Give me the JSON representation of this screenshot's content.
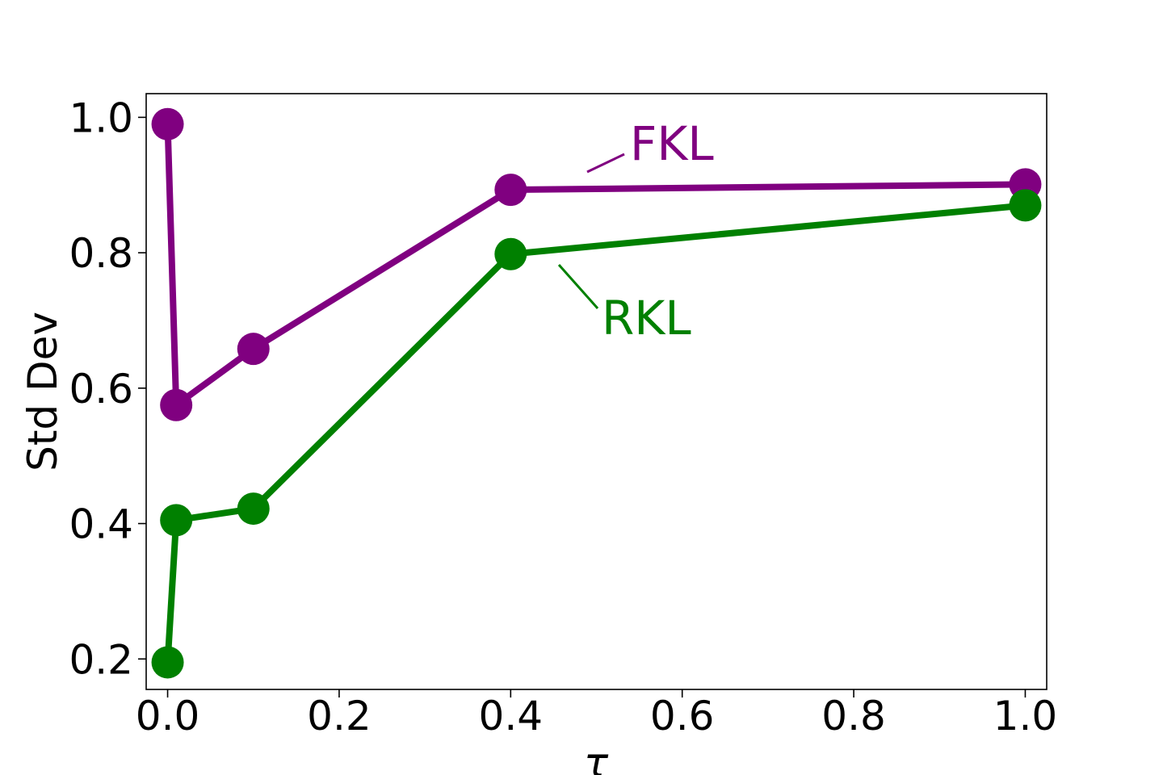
{
  "chart_data": {
    "type": "line",
    "xlabel": "τ",
    "ylabel": "Std Dev",
    "xlim": [
      -0.025,
      1.025
    ],
    "ylim": [
      0.155,
      1.035
    ],
    "x_ticks": [
      0.0,
      0.2,
      0.4,
      0.6,
      0.8,
      1.0
    ],
    "x_tick_labels": [
      "0.0",
      "0.2",
      "0.4",
      "0.6",
      "0.8",
      "1.0"
    ],
    "y_ticks": [
      0.2,
      0.4,
      0.6,
      0.8,
      1.0
    ],
    "y_tick_labels": [
      "0.2",
      "0.4",
      "0.6",
      "0.8",
      "1.0"
    ],
    "grid": false,
    "series": [
      {
        "name": "FKL",
        "color": "#800080",
        "x": [
          0.0,
          0.01,
          0.1,
          0.4,
          1.0
        ],
        "y": [
          0.99,
          0.575,
          0.658,
          0.893,
          0.901
        ]
      },
      {
        "name": "RKL",
        "color": "#008000",
        "x": [
          0.0,
          0.01,
          0.1,
          0.4,
          1.0
        ],
        "y": [
          0.195,
          0.405,
          0.422,
          0.798,
          0.87
        ]
      }
    ]
  }
}
